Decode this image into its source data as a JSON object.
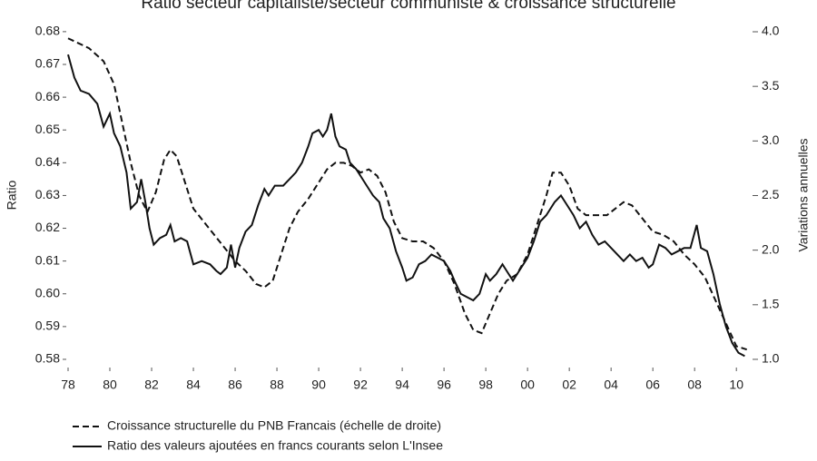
{
  "chart_data": {
    "type": "line",
    "title": "Ratio secteur capitaliste/secteur communiste & croissance structurelle",
    "ylabel": "Ratio",
    "y2label": "Variations annuelles",
    "xlim": [
      1978,
      2010.6
    ],
    "xticks": [
      {
        "value": 1978,
        "label": "78"
      },
      {
        "value": 1980,
        "label": "80"
      },
      {
        "value": 1982,
        "label": "82"
      },
      {
        "value": 1984,
        "label": "84"
      },
      {
        "value": 1986,
        "label": "86"
      },
      {
        "value": 1988,
        "label": "88"
      },
      {
        "value": 1990,
        "label": "90"
      },
      {
        "value": 1992,
        "label": "92"
      },
      {
        "value": 1994,
        "label": "94"
      },
      {
        "value": 1996,
        "label": "96"
      },
      {
        "value": 1998,
        "label": "98"
      },
      {
        "value": 2000,
        "label": "00"
      },
      {
        "value": 2002,
        "label": "02"
      },
      {
        "value": 2004,
        "label": "04"
      },
      {
        "value": 2006,
        "label": "06"
      },
      {
        "value": 2008,
        "label": "08"
      },
      {
        "value": 2010,
        "label": "10"
      }
    ],
    "ylim": [
      0.5775,
      0.6808
    ],
    "yticks": [
      0.58,
      0.59,
      {
        "value": 0.6,
        "label": "0.60"
      },
      0.61,
      0.62,
      0.63,
      0.64,
      0.65,
      0.66,
      0.67,
      0.68
    ],
    "y2lim": [
      0.925,
      4.025
    ],
    "y2ticks": [
      {
        "value": 1,
        "label": "1.0"
      },
      1.5,
      {
        "value": 2,
        "label": "2.0"
      },
      2.5,
      {
        "value": 3,
        "label": "3.0"
      },
      3.5,
      {
        "value": 4,
        "label": "4.0"
      }
    ],
    "series": [
      {
        "name": "Croissance structurelle du PNB Francais (échelle de droite)",
        "color": "#111111",
        "dash": "dashed",
        "axis": "y2",
        "x": [
          1978.0,
          1979.0,
          1979.7,
          1980.2,
          1980.6,
          1981.0,
          1981.4,
          1981.8,
          1982.2,
          1982.6,
          1982.9,
          1983.2,
          1983.6,
          1984.0,
          1984.5,
          1985.0,
          1985.5,
          1986.0,
          1986.5,
          1987.0,
          1987.4,
          1987.8,
          1988.2,
          1988.6,
          1989.0,
          1989.5,
          1990.0,
          1990.4,
          1990.8,
          1991.2,
          1991.6,
          1992.0,
          1992.4,
          1992.8,
          1993.2,
          1993.6,
          1994.0,
          1994.5,
          1995.0,
          1995.5,
          1996.0,
          1996.5,
          1997.0,
          1997.4,
          1997.8,
          1998.2,
          1998.6,
          1999.0,
          1999.5,
          2000.0,
          2000.5,
          2000.9,
          2001.2,
          2001.6,
          2002.0,
          2002.4,
          2002.8,
          2003.3,
          2003.8,
          2004.2,
          2004.6,
          2005.0,
          2005.5,
          2006.0,
          2006.5,
          2007.0,
          2007.5,
          2008.0,
          2008.5,
          2009.0,
          2009.5,
          2010.0,
          2010.5
        ],
        "values": [
          3.94,
          3.85,
          3.73,
          3.52,
          3.16,
          2.8,
          2.5,
          2.35,
          2.53,
          2.83,
          2.92,
          2.86,
          2.62,
          2.38,
          2.26,
          2.14,
          2.02,
          1.9,
          1.81,
          1.69,
          1.66,
          1.72,
          1.96,
          2.2,
          2.35,
          2.47,
          2.62,
          2.74,
          2.8,
          2.8,
          2.77,
          2.71,
          2.74,
          2.68,
          2.53,
          2.26,
          2.11,
          2.08,
          2.08,
          2.02,
          1.9,
          1.69,
          1.42,
          1.27,
          1.24,
          1.42,
          1.6,
          1.72,
          1.78,
          1.96,
          2.26,
          2.5,
          2.71,
          2.71,
          2.59,
          2.38,
          2.32,
          2.32,
          2.32,
          2.38,
          2.44,
          2.41,
          2.29,
          2.17,
          2.14,
          2.08,
          1.96,
          1.87,
          1.75,
          1.54,
          1.33,
          1.12,
          1.09
        ]
      },
      {
        "name": "Ratio des valeurs ajoutées en francs courants selon L'Insee",
        "color": "#111111",
        "dash": "solid",
        "axis": "y",
        "x": [
          1978.0,
          1978.3,
          1978.6,
          1979.0,
          1979.4,
          1979.7,
          1980.0,
          1980.2,
          1980.5,
          1980.8,
          1981.0,
          1981.3,
          1981.5,
          1981.7,
          1981.9,
          1982.1,
          1982.4,
          1982.7,
          1982.9,
          1983.1,
          1983.4,
          1983.7,
          1984.0,
          1984.4,
          1984.8,
          1985.1,
          1985.3,
          1985.6,
          1985.8,
          1986.0,
          1986.2,
          1986.5,
          1986.8,
          1987.1,
          1987.4,
          1987.6,
          1987.9,
          1988.3,
          1988.6,
          1988.9,
          1989.2,
          1989.5,
          1989.7,
          1990.0,
          1990.2,
          1990.4,
          1990.6,
          1990.8,
          1991.0,
          1991.3,
          1991.5,
          1991.8,
          1992.0,
          1992.3,
          1992.6,
          1992.9,
          1993.1,
          1993.4,
          1993.7,
          1994.0,
          1994.2,
          1994.5,
          1994.8,
          1995.1,
          1995.4,
          1995.7,
          1996.0,
          1996.3,
          1996.5,
          1996.8,
          1997.1,
          1997.4,
          1997.7,
          1998.0,
          1998.2,
          1998.5,
          1998.8,
          1999.0,
          1999.3,
          1999.6,
          2000.0,
          2000.3,
          2000.6,
          2000.9,
          2001.1,
          2001.3,
          2001.6,
          2001.9,
          2002.2,
          2002.5,
          2002.8,
          2003.1,
          2003.4,
          2003.7,
          2004.0,
          2004.3,
          2004.6,
          2004.9,
          2005.2,
          2005.5,
          2005.8,
          2006.0,
          2006.3,
          2006.6,
          2006.9,
          2007.2,
          2007.5,
          2007.8,
          2008.1,
          2008.3,
          2008.6,
          2008.9,
          2009.2,
          2009.5,
          2009.8,
          2010.1,
          2010.4
        ],
        "values": [
          0.673,
          0.666,
          0.662,
          0.661,
          0.658,
          0.651,
          0.655,
          0.649,
          0.645,
          0.637,
          0.626,
          0.628,
          0.635,
          0.628,
          0.62,
          0.615,
          0.617,
          0.618,
          0.621,
          0.616,
          0.617,
          0.616,
          0.609,
          0.61,
          0.609,
          0.607,
          0.606,
          0.608,
          0.615,
          0.608,
          0.614,
          0.619,
          0.621,
          0.627,
          0.632,
          0.63,
          0.633,
          0.633,
          0.635,
          0.637,
          0.64,
          0.645,
          0.649,
          0.65,
          0.648,
          0.65,
          0.655,
          0.648,
          0.645,
          0.644,
          0.64,
          0.638,
          0.636,
          0.633,
          0.63,
          0.628,
          0.623,
          0.62,
          0.613,
          0.608,
          0.604,
          0.605,
          0.609,
          0.61,
          0.612,
          0.611,
          0.61,
          0.607,
          0.604,
          0.6,
          0.599,
          0.598,
          0.6,
          0.606,
          0.604,
          0.606,
          0.609,
          0.607,
          0.604,
          0.607,
          0.611,
          0.616,
          0.622,
          0.624,
          0.626,
          0.628,
          0.63,
          0.627,
          0.624,
          0.62,
          0.622,
          0.618,
          0.615,
          0.616,
          0.614,
          0.612,
          0.61,
          0.612,
          0.61,
          0.611,
          0.608,
          0.609,
          0.615,
          0.614,
          0.612,
          0.613,
          0.614,
          0.614,
          0.621,
          0.614,
          0.613,
          0.606,
          0.597,
          0.59,
          0.585,
          0.582,
          0.581
        ]
      }
    ]
  }
}
